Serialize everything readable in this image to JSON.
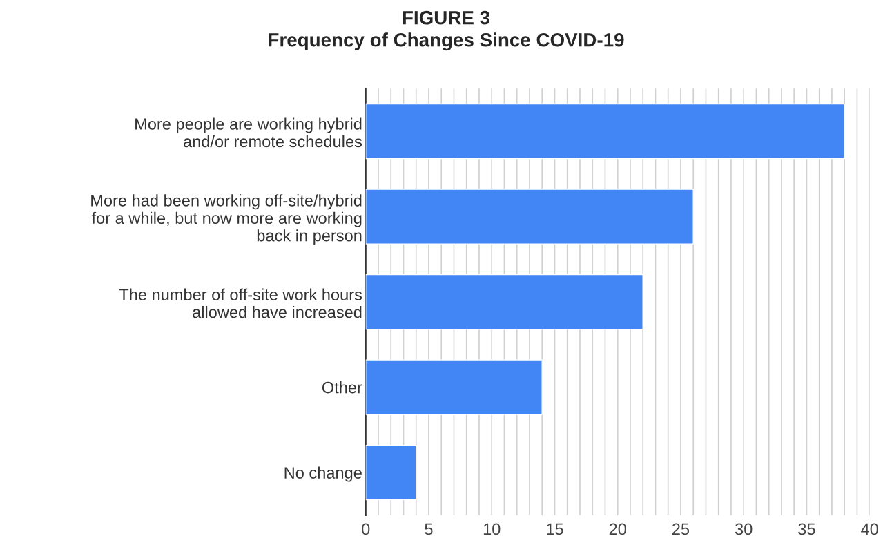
{
  "chart_data": {
    "type": "bar",
    "orientation": "horizontal",
    "title": "FIGURE 3",
    "subtitle": "Frequency of Changes Since COVID-19",
    "categories": [
      "More people are working hybrid\nand/or remote schedules",
      "More had been working off-site/hybrid\nfor a while, but now more are working\nback in person",
      "The number of off-site work hours\nallowed have increased",
      "Other",
      "No change"
    ],
    "values": [
      38,
      26,
      22,
      14,
      4
    ],
    "color": "#4285f4",
    "xlim": [
      0,
      40
    ],
    "xticks": [
      0,
      {
        "value": 1,
        "label": null
      },
      {
        "value": 2,
        "label": null
      },
      {
        "value": 3,
        "label": null
      },
      {
        "value": 4,
        "label": null
      },
      5,
      {
        "value": 6,
        "label": null
      },
      {
        "value": 7,
        "label": null
      },
      {
        "value": 8,
        "label": null
      },
      {
        "value": 9,
        "label": null
      },
      10,
      {
        "value": 11,
        "label": null
      },
      {
        "value": 12,
        "label": null
      },
      {
        "value": 13,
        "label": null
      },
      {
        "value": 14,
        "label": null
      },
      15,
      {
        "value": 16,
        "label": null
      },
      {
        "value": 17,
        "label": null
      },
      {
        "value": 18,
        "label": null
      },
      {
        "value": 19,
        "label": null
      },
      20,
      {
        "value": 21,
        "label": null
      },
      {
        "value": 22,
        "label": null
      },
      {
        "value": 23,
        "label": null
      },
      {
        "value": 24,
        "label": null
      },
      25,
      {
        "value": 26,
        "label": null
      },
      {
        "value": 27,
        "label": null
      },
      {
        "value": 28,
        "label": null
      },
      {
        "value": 29,
        "label": null
      },
      30,
      {
        "value": 31,
        "label": null
      },
      {
        "value": 32,
        "label": null
      },
      {
        "value": 33,
        "label": null
      },
      {
        "value": 34,
        "label": null
      },
      35,
      {
        "value": 36,
        "label": null
      },
      {
        "value": 37,
        "label": null
      },
      {
        "value": 38,
        "label": null
      },
      {
        "value": 39,
        "label": null
      },
      40
    ],
    "grid": "x"
  }
}
